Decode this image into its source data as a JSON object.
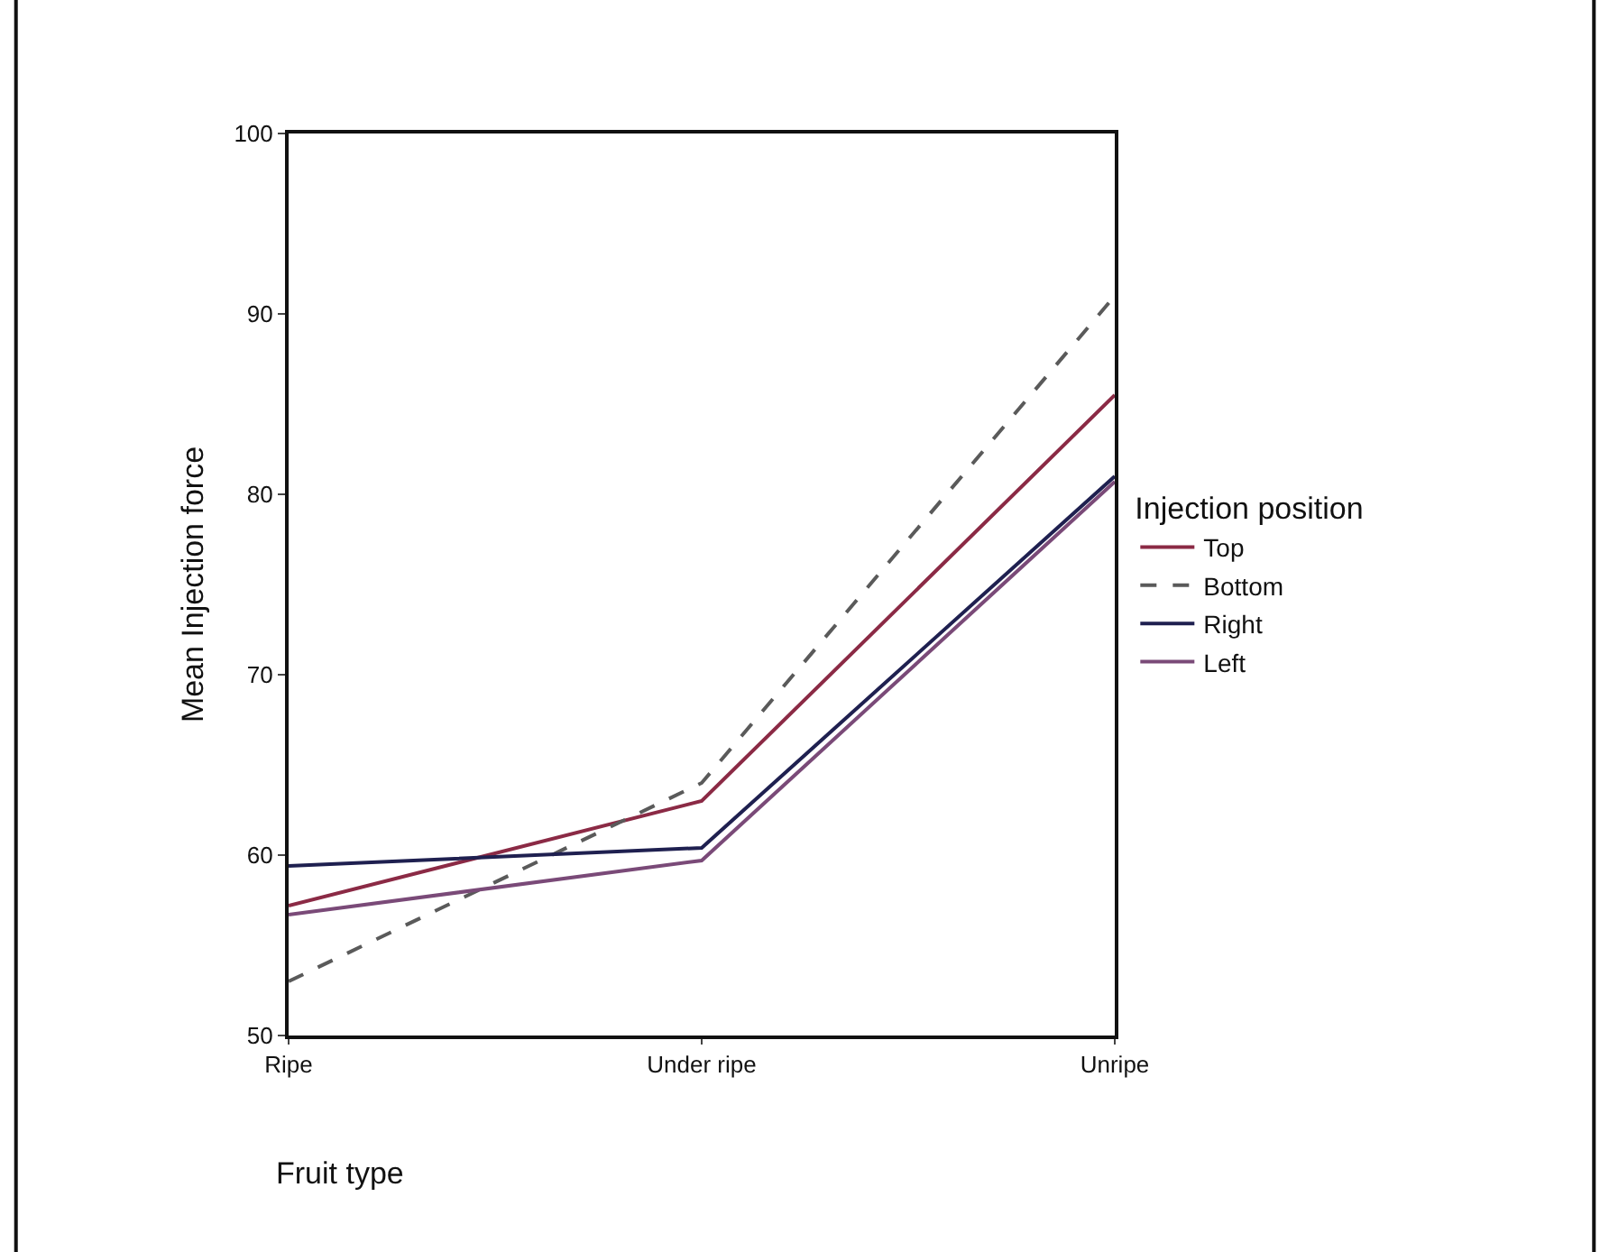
{
  "chart_data": {
    "type": "line",
    "xlabel": "Fruit type",
    "ylabel": "Mean Injection force",
    "legend_title": "Injection position",
    "categories": [
      "Ripe",
      "Under ripe",
      "Unripe"
    ],
    "series": [
      {
        "name": "Top",
        "color": "#8b2a45",
        "values": [
          57.2,
          63.0,
          85.5
        ],
        "line_style": "solid"
      },
      {
        "name": "Bottom",
        "color": "#5a5a5a",
        "values": [
          53.0,
          64.0,
          91.0
        ],
        "line_style": "dashed"
      },
      {
        "name": "Right",
        "color": "#1f2050",
        "values": [
          59.4,
          60.4,
          81.0
        ],
        "line_style": "solid"
      },
      {
        "name": "Left",
        "color": "#7a4a78",
        "values": [
          56.7,
          59.7,
          80.7
        ],
        "line_style": "solid"
      }
    ],
    "ylim": [
      50,
      100
    ],
    "yticks": [
      50,
      60,
      70,
      80,
      90,
      100
    ],
    "legend": "right",
    "marker": "none"
  }
}
